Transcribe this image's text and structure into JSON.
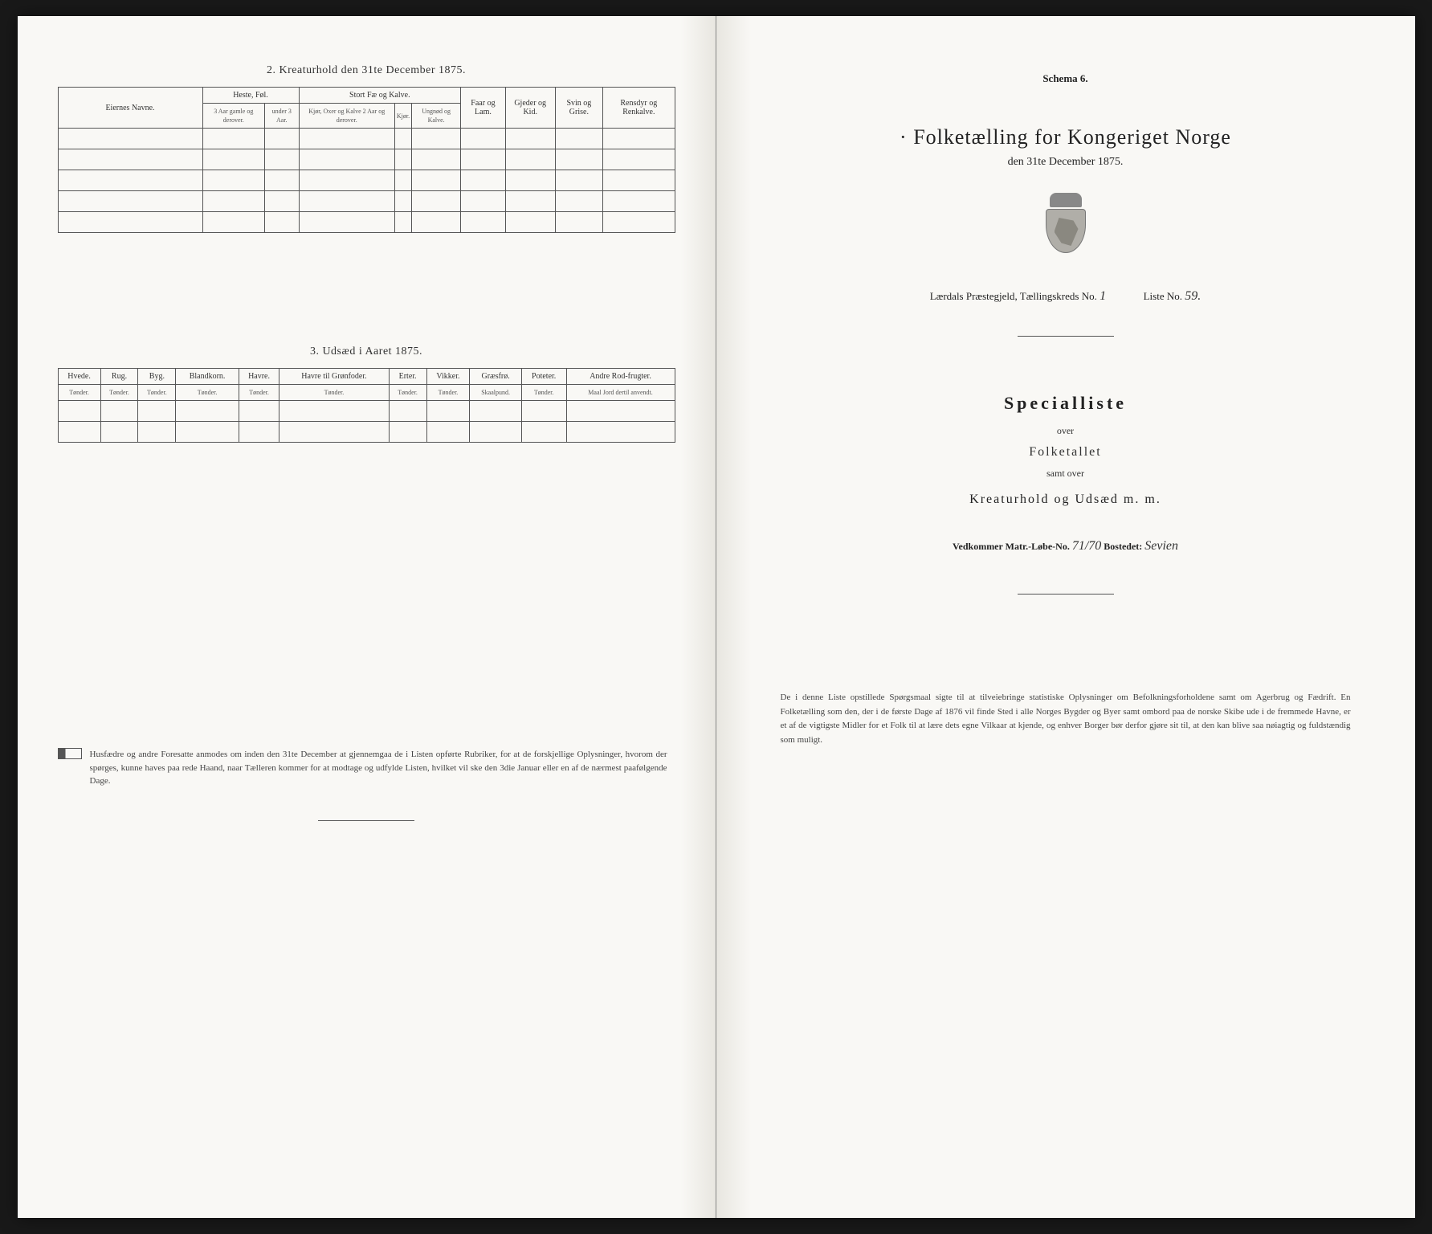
{
  "left": {
    "section2_title": "2. Kreaturhold den 31te December 1875.",
    "table2": {
      "col_eierne": "Eiernes Navne.",
      "group_heste": "Heste, Føl.",
      "heste_sub1": "3 Aar gamle og derover.",
      "heste_sub2": "under 3 Aar.",
      "group_stort": "Stort Fæ og Kalve.",
      "stort_sub1": "Kjør, Oxer og Kalve 2 Aar og derover.",
      "stort_sub2": "Kjør.",
      "stort_sub3": "Ungnød og Kalve.",
      "col_faar": "Faar og Lam.",
      "col_gjeder": "Gjeder og Kid.",
      "col_svin": "Svin og Grise.",
      "col_rensdyr": "Rensdyr og Renkalve."
    },
    "section3_title": "3. Udsæd i Aaret 1875.",
    "table3": {
      "cols": [
        {
          "h": "Hvede.",
          "s": "Tønder."
        },
        {
          "h": "Rug.",
          "s": "Tønder."
        },
        {
          "h": "Byg.",
          "s": "Tønder."
        },
        {
          "h": "Blandkorn.",
          "s": "Tønder."
        },
        {
          "h": "Havre.",
          "s": "Tønder."
        },
        {
          "h": "Havre til Grønfoder.",
          "s": "Tønder."
        },
        {
          "h": "Erter.",
          "s": "Tønder."
        },
        {
          "h": "Vikker.",
          "s": "Tønder."
        },
        {
          "h": "Græsfrø.",
          "s": "Skaalpund."
        },
        {
          "h": "Poteter.",
          "s": "Tønder."
        },
        {
          "h": "Andre Rod-frugter.",
          "s": "Maal Jord dertil anvendt."
        }
      ]
    },
    "footnote": "Husfædre og andre Foresatte anmodes om inden den 31te December at gjennemgaa de i Listen opførte Rubriker, for at de forskjellige Oplysninger, hvorom der spørges, kunne haves paa rede Haand, naar Tælleren kommer for at modtage og udfylde Listen, hvilket vil ske den 3die Januar eller en af de nærmest paafølgende Dage."
  },
  "right": {
    "schema": "Schema 6.",
    "title": "Folketælling for Kongeriget Norge",
    "subtitle": "den 31te December 1875.",
    "praestegjeld_label": "Lærdals Præstegjeld, Tællingskreds No.",
    "kreds_no": "1",
    "liste_label": "Liste No.",
    "liste_no": "59.",
    "specialliste": "Specialliste",
    "over": "over",
    "folketallet": "Folketallet",
    "samt_over": "samt over",
    "kreaturhold": "Kreaturhold og Udsæd m. m.",
    "vedkommer_label": "Vedkommer Matr.-Løbe-No.",
    "matr_no": "71/70",
    "bostedet_label": "Bostedet:",
    "bostedet": "Sevien",
    "footnote": "De i denne Liste opstillede Spørgsmaal sigte til at tilveiebringe statistiske Oplysninger om Befolkningsforholdene samt om Agerbrug og Fædrift. En Folketælling som den, der i de første Dage af 1876 vil finde Sted i alle Norges Bygder og Byer samt ombord paa de norske Skibe ude i de fremmede Havne, er et af de vigtigste Midler for et Folk til at lære dets egne Vilkaar at kjende, og enhver Borger bør derfor gjøre sit til, at den kan blive saa nøiagtig og fuldstændig som muligt."
  },
  "colors": {
    "bg_dark": "#191919",
    "paper": "#f9f8f5",
    "text": "#333333",
    "border": "#555555"
  }
}
